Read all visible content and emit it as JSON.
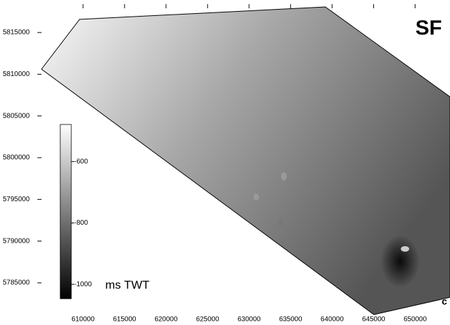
{
  "title": "SF",
  "corner_label": "c",
  "x_axis": {
    "lim": [
      605000,
      654200
    ],
    "ticks": [
      610000,
      615000,
      620000,
      625000,
      630000,
      635000,
      640000,
      645000,
      650000
    ]
  },
  "y_axis": {
    "lim": [
      5781600,
      5818900
    ],
    "ticks": [
      5785000,
      5790000,
      5795000,
      5800000,
      5805000,
      5810000,
      5815000
    ]
  },
  "colorbar": {
    "label": "ms TWT",
    "lim": [
      -1047,
      -479
    ],
    "ticks": [
      -600,
      -800,
      -1000
    ]
  }
}
